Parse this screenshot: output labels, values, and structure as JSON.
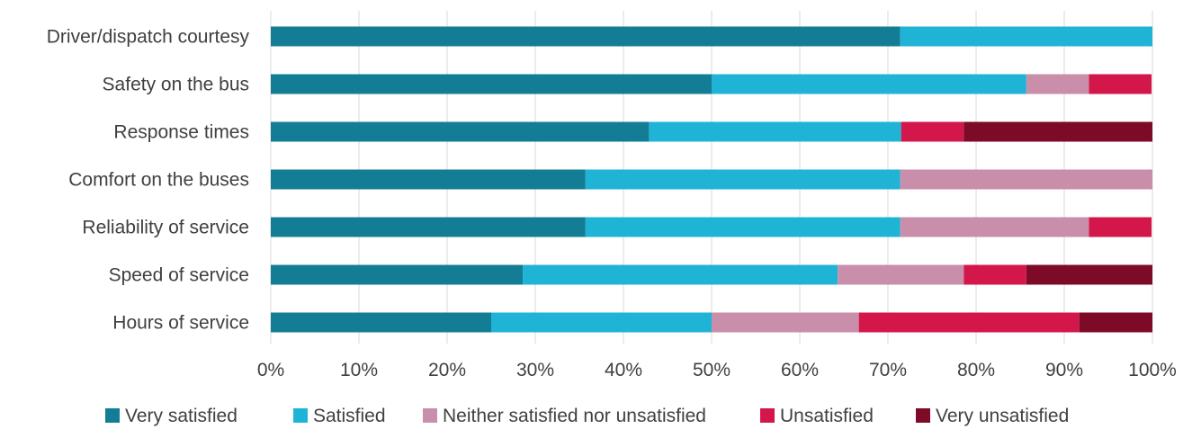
{
  "chart_data": {
    "type": "bar",
    "orientation": "horizontal",
    "stacked": true,
    "percent_stacked": true,
    "categories": [
      "Driver/dispatch courtesy",
      "Safety on the bus",
      "Response times",
      "Comfort on the buses",
      "Reliability of service",
      "Speed of service",
      "Hours of service"
    ],
    "series": [
      {
        "name": "Very satisfied",
        "color": "#147d96",
        "values": [
          71.4,
          50.0,
          42.9,
          35.7,
          35.7,
          28.6,
          25.0
        ]
      },
      {
        "name": "Satisfied",
        "color": "#1fb4d6",
        "values": [
          28.6,
          35.7,
          28.6,
          35.7,
          35.7,
          35.7,
          25.0
        ]
      },
      {
        "name": "Neither satisfied nor unsatisfied",
        "color": "#c98faa",
        "values": [
          0,
          7.1,
          0,
          28.6,
          21.4,
          14.3,
          16.7
        ]
      },
      {
        "name": "Unsatisfied",
        "color": "#d4174a",
        "values": [
          0,
          7.1,
          7.1,
          0,
          7.1,
          7.1,
          25.0
        ]
      },
      {
        "name": "Very unsatisfied",
        "color": "#7d0a26",
        "values": [
          0,
          0,
          21.4,
          0,
          0,
          14.3,
          8.3
        ]
      }
    ],
    "x_ticks": [
      "0%",
      "10%",
      "20%",
      "30%",
      "40%",
      "50%",
      "60%",
      "70%",
      "80%",
      "90%",
      "100%"
    ],
    "xlim": [
      0,
      100
    ],
    "grid": "vertical",
    "legend_position": "bottom",
    "title": "",
    "xlabel": "",
    "ylabel": ""
  }
}
